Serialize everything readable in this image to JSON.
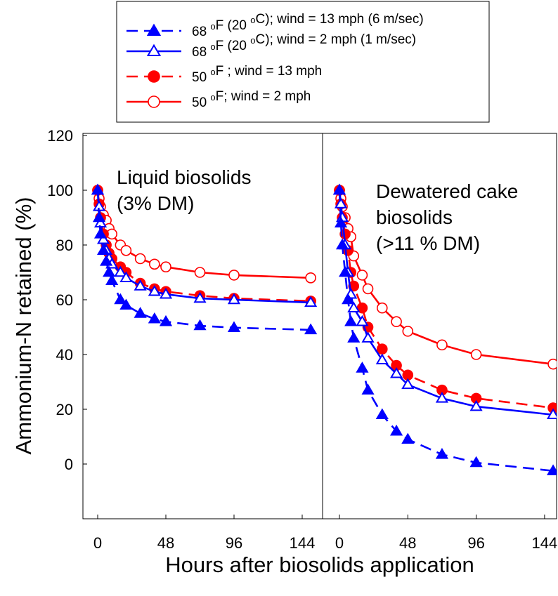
{
  "legend": {
    "entries": [
      {
        "base": "68 ",
        "sup1": "o",
        "mid": "F (20 ",
        "sup2": "o",
        "tail": "C); wind = 13 mph (6 m/sec)",
        "color": "#0000ff",
        "dash": true,
        "marker": "triangle",
        "filled": true
      },
      {
        "base": "68 ",
        "sup1": "o",
        "mid": "F (20 ",
        "sup2": "o",
        "tail": "C); wind = 2 mph (1 m/sec)",
        "color": "#0000ff",
        "dash": false,
        "marker": "triangle",
        "filled": false
      },
      {
        "base": "50 ",
        "sup1": "o",
        "mid": "F ; wind = 13 mph",
        "sup2": "",
        "tail": "",
        "color": "#ff0000",
        "dash": true,
        "marker": "circle",
        "filled": true
      },
      {
        "base": "50 ",
        "sup1": "o",
        "mid": "F; wind = 2 mph",
        "sup2": "",
        "tail": "",
        "color": "#ff0000",
        "dash": false,
        "marker": "circle",
        "filled": false
      }
    ]
  },
  "axes": {
    "ylabel": "Ammonium-N retained (%)",
    "xlabel": "Hours after biosolids application",
    "yticks": [
      "120",
      "100",
      "80",
      "60",
      "40",
      "20",
      "0"
    ],
    "xticks": [
      "0",
      "48",
      "96",
      "144"
    ]
  },
  "chart_data": [
    {
      "type": "line",
      "panel": "left",
      "annotation": [
        "Liquid biosolids",
        "(3% DM)"
      ],
      "xlim": [
        -8,
        152
      ],
      "ylim": [
        -20,
        120
      ],
      "x": [
        0,
        1,
        2,
        4,
        6,
        8,
        10,
        16,
        20,
        30,
        40,
        48,
        72,
        96,
        150
      ],
      "series": [
        {
          "name": "68 oF (20 oC); wind = 13 mph (6 m/sec)",
          "values": [
            100,
            90,
            84,
            78,
            74,
            70,
            67,
            60,
            58,
            55,
            53,
            52,
            50.5,
            49.8,
            49
          ]
        },
        {
          "name": "68 oF (20 oC); wind = 2 mph (1 m/sec)",
          "values": [
            100,
            94,
            88,
            82,
            78,
            75,
            73,
            70,
            68,
            65,
            63,
            62,
            60.5,
            60,
            59
          ]
        },
        {
          "name": "50 oF ; wind = 13 mph",
          "values": [
            100,
            95,
            90,
            84,
            80,
            77,
            75,
            72,
            70,
            66,
            64,
            63,
            61.5,
            60.5,
            59.5
          ]
        },
        {
          "name": "50 oF; wind = 2 mph",
          "values": [
            100,
            97,
            94,
            91,
            89,
            86,
            84,
            80,
            78,
            75,
            73,
            72,
            70,
            69,
            68
          ]
        }
      ],
      "grid": false
    },
    {
      "type": "line",
      "panel": "right",
      "annotation": [
        "Dewatered cake",
        "biosolids",
        "(>11 % DM)"
      ],
      "xlim": [
        -8,
        152
      ],
      "ylim": [
        -20,
        120
      ],
      "x": [
        0,
        1,
        2,
        4,
        6,
        8,
        10,
        16,
        20,
        30,
        40,
        48,
        72,
        96,
        150
      ],
      "series": [
        {
          "name": "68 oF (20 oC); wind = 13 mph (6 m/sec)",
          "values": [
            100,
            88,
            80,
            70,
            60,
            52,
            46,
            35,
            27,
            18,
            12,
            9,
            3.5,
            0.5,
            -2.5
          ]
        },
        {
          "name": "68 oF (20 oC); wind = 2 mph (1 m/sec)",
          "values": [
            100,
            95,
            90,
            80,
            70,
            62,
            57,
            52,
            46,
            38,
            33,
            29,
            24,
            21,
            18
          ]
        },
        {
          "name": "50 oF ; wind = 13 mph",
          "values": [
            100,
            95,
            90,
            84,
            78,
            70,
            65,
            57,
            50,
            42,
            36,
            32.5,
            27,
            24,
            20.5
          ]
        },
        {
          "name": "50 oF; wind = 2 mph",
          "values": [
            100,
            97,
            94,
            90,
            86,
            83,
            76,
            69,
            64,
            57,
            52,
            48.5,
            43.5,
            40,
            36.5
          ]
        }
      ],
      "grid": false
    }
  ]
}
